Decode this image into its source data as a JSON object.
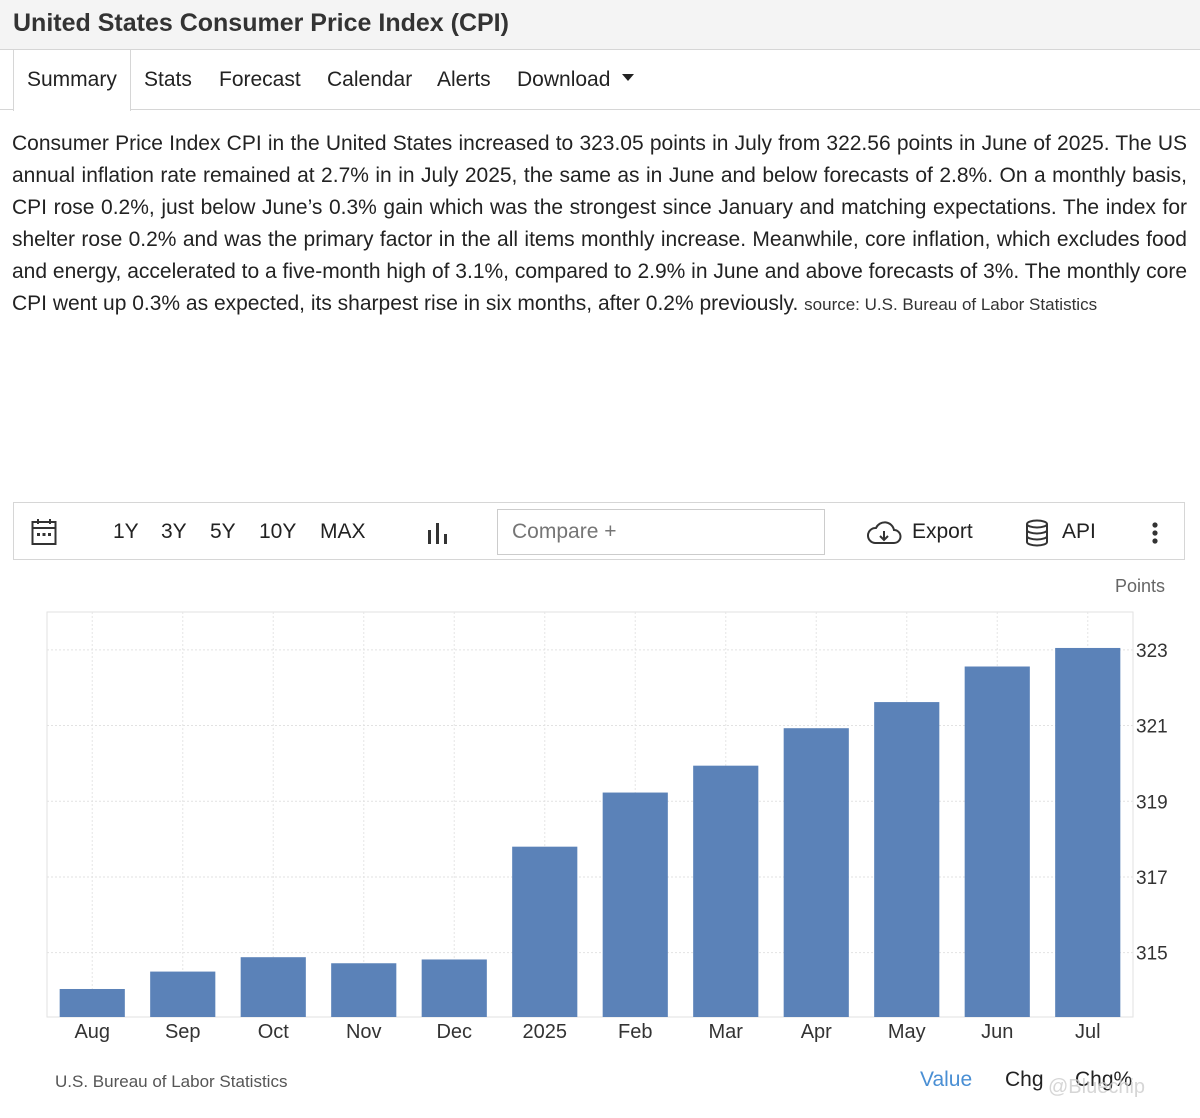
{
  "page": {
    "title": "United States Consumer Price Index (CPI)"
  },
  "tabs": [
    {
      "label": "Summary",
      "active": true
    },
    {
      "label": "Stats"
    },
    {
      "label": "Forecast"
    },
    {
      "label": "Calendar"
    },
    {
      "label": "Alerts"
    },
    {
      "label": "Download",
      "has_dropdown": true
    }
  ],
  "description": {
    "text": "Consumer Price Index CPI in the United States increased to 323.05 points in July from 322.56 points in June of 2025. The US annual inflation rate remained at 2.7% in in July 2025, the same as in June and below forecasts of 2.8%. On a monthly basis, CPI rose 0.2%, just below June’s 0.3% gain which was the strongest since January and matching expectations. The index for shelter rose 0.2% and was the primary factor in the all items monthly increase. Meanwhile, core inflation, which excludes food and energy, accelerated to a five-month high of 3.1%, compared to 2.9% in June and above forecasts of 3%. The monthly core CPI went up 0.3% as expected, its sharpest rise in six months, after 0.2% previously.",
    "source": "source: U.S. Bureau of Labor Statistics"
  },
  "toolbar": {
    "calendar_icon": "calendar-icon",
    "ranges": [
      "1Y",
      "3Y",
      "5Y",
      "10Y",
      "MAX"
    ],
    "chart_type_icon": "bar-chart-icon",
    "compare_placeholder": "Compare +",
    "export_label": "Export",
    "export_icon": "cloud-download-icon",
    "api_label": "API",
    "api_icon": "database-icon",
    "more_icon": "more-vertical-icon"
  },
  "chart_data": {
    "type": "bar",
    "ylabel": "Points",
    "categories": [
      "Aug",
      "Sep",
      "Oct",
      "Nov",
      "Dec",
      "2025",
      "Feb",
      "Mar",
      "Apr",
      "May",
      "Jun",
      "Jul"
    ],
    "values": [
      314.04,
      314.5,
      314.88,
      314.72,
      314.82,
      317.8,
      319.23,
      319.94,
      320.93,
      321.62,
      322.56,
      323.05
    ],
    "ylim": [
      313.3,
      324.0
    ],
    "yticks": [
      315,
      317,
      319,
      321,
      323
    ],
    "y_axis_side": "right",
    "grid": true,
    "bar_color": "#5b82b8"
  },
  "footer": {
    "source": "U.S. Bureau of Labor Statistics",
    "value_label": "Value",
    "chg_label": "Chg",
    "chgpct_label": "Chg%",
    "watermark": "@Bluechip",
    "active_color": "#4a8fd4"
  }
}
